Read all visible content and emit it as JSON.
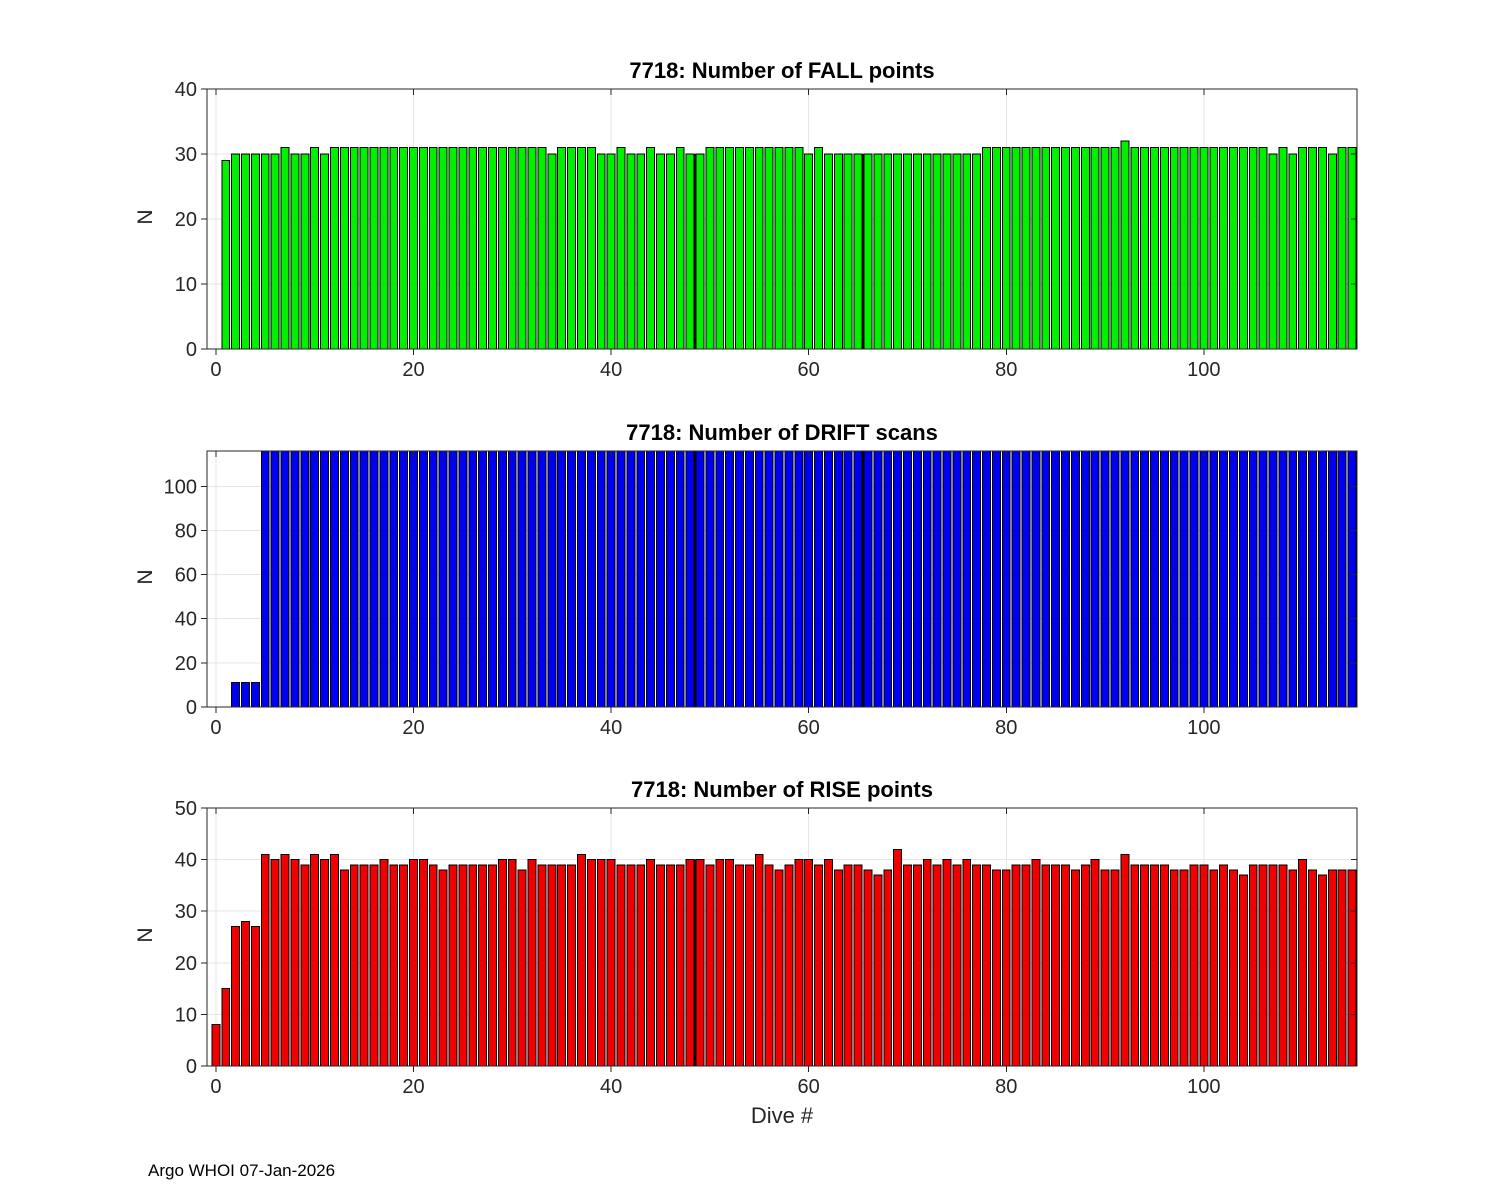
{
  "figure": {
    "footer": "Argo WHOI 07-Jan-2026",
    "background": "#ffffff"
  },
  "style": {
    "axis_color": "#262626",
    "grid_color": "#e6e6e6",
    "title_color": "#000000",
    "tick_label_color": "#262626",
    "bar_edge_color": "#000000"
  },
  "chart_data": [
    {
      "id": "fall",
      "type": "bar",
      "title": "7718: Number of FALL points",
      "ylabel": "N",
      "xlabel": "",
      "bar_color": "#00f000",
      "xlim": [
        -0.9,
        115.5
      ],
      "ylim": [
        0,
        40
      ],
      "xticks": [
        0,
        20,
        40,
        60,
        80,
        100
      ],
      "yticks": [
        0,
        10,
        20,
        30,
        40
      ],
      "x_start": 1,
      "values": [
        29,
        30,
        30,
        30,
        30,
        30,
        31,
        30,
        30,
        31,
        30,
        31,
        31,
        31,
        31,
        31,
        31,
        31,
        31,
        31,
        31,
        31,
        31,
        31,
        31,
        31,
        31,
        31,
        31,
        31,
        31,
        31,
        31,
        30,
        31,
        31,
        31,
        31,
        30,
        30,
        31,
        30,
        30,
        31,
        30,
        30,
        31,
        30,
        30,
        31,
        31,
        31,
        31,
        31,
        31,
        31,
        31,
        31,
        31,
        30,
        31,
        30,
        30,
        30,
        30,
        30,
        30,
        30,
        30,
        30,
        30,
        30,
        30,
        30,
        30,
        30,
        30,
        31,
        31,
        31,
        31,
        31,
        31,
        31,
        31,
        31,
        31,
        31,
        31,
        31,
        31,
        32,
        31,
        31,
        31,
        31,
        31,
        31,
        31,
        31,
        31,
        31,
        31,
        31,
        31,
        31,
        30,
        31,
        30,
        31,
        31,
        31,
        30,
        31,
        31
      ],
      "dark_seams": [
        {
          "x": 48.5,
          "v": 30
        },
        {
          "x": 65.5,
          "v": 30
        }
      ]
    },
    {
      "id": "drift",
      "type": "bar",
      "title": "7718: Number of DRIFT scans",
      "ylabel": "N",
      "xlabel": "",
      "bar_color": "#0000f0",
      "xlim": [
        -0.9,
        115.5
      ],
      "ylim": [
        0,
        116
      ],
      "xticks": [
        0,
        20,
        40,
        60,
        80,
        100
      ],
      "yticks": [
        0,
        20,
        40,
        60,
        80,
        100
      ],
      "x_start": 0,
      "values": [
        0,
        0,
        11,
        11,
        11,
        116,
        116,
        116,
        116,
        116,
        116,
        116,
        116,
        116,
        116,
        116,
        116,
        116,
        116,
        116,
        116,
        116,
        116,
        116,
        116,
        116,
        116,
        116,
        116,
        116,
        116,
        116,
        116,
        116,
        116,
        116,
        116,
        116,
        116,
        116,
        116,
        116,
        116,
        116,
        116,
        116,
        116,
        116,
        116,
        116,
        116,
        116,
        116,
        116,
        116,
        116,
        116,
        116,
        116,
        116,
        116,
        116,
        116,
        116,
        116,
        116,
        116,
        116,
        116,
        116,
        116,
        116,
        116,
        116,
        116,
        116,
        116,
        116,
        116,
        116,
        116,
        116,
        116,
        116,
        116,
        116,
        116,
        116,
        116,
        116,
        116,
        116,
        116,
        116,
        116,
        116,
        116,
        116,
        116,
        116,
        116,
        116,
        116,
        116,
        116,
        116,
        116,
        116,
        116,
        116,
        116,
        116,
        116,
        116,
        116,
        116
      ],
      "dark_seams": [
        {
          "x": 48.5,
          "v": 116
        },
        {
          "x": 65.5,
          "v": 116
        }
      ]
    },
    {
      "id": "rise",
      "type": "bar",
      "title": "7718: Number of RISE points",
      "ylabel": "N",
      "xlabel": "Dive #",
      "bar_color": "#f00000",
      "xlim": [
        -0.9,
        115.5
      ],
      "ylim": [
        0,
        50
      ],
      "xticks": [
        0,
        20,
        40,
        60,
        80,
        100
      ],
      "yticks": [
        0,
        10,
        20,
        30,
        40,
        50
      ],
      "x_start": 0,
      "values": [
        8,
        15,
        27,
        28,
        27,
        41,
        40,
        41,
        40,
        39,
        41,
        40,
        41,
        38,
        39,
        39,
        39,
        40,
        39,
        39,
        40,
        40,
        39,
        38,
        39,
        39,
        39,
        39,
        39,
        40,
        40,
        38,
        40,
        39,
        39,
        39,
        39,
        41,
        40,
        40,
        40,
        39,
        39,
        39,
        40,
        39,
        39,
        39,
        40,
        40,
        39,
        40,
        40,
        39,
        39,
        41,
        39,
        38,
        39,
        40,
        40,
        39,
        40,
        38,
        39,
        39,
        38,
        37,
        38,
        42,
        39,
        39,
        40,
        39,
        40,
        39,
        40,
        39,
        39,
        38,
        38,
        39,
        39,
        40,
        39,
        39,
        39,
        38,
        39,
        40,
        38,
        38,
        41,
        39,
        39,
        39,
        39,
        38,
        38,
        39,
        39,
        38,
        39,
        38,
        37,
        39,
        39,
        39,
        39,
        38,
        40,
        38,
        37,
        38,
        38,
        38
      ],
      "dark_seams": [
        {
          "x": 48.5,
          "v": 40
        }
      ]
    }
  ]
}
